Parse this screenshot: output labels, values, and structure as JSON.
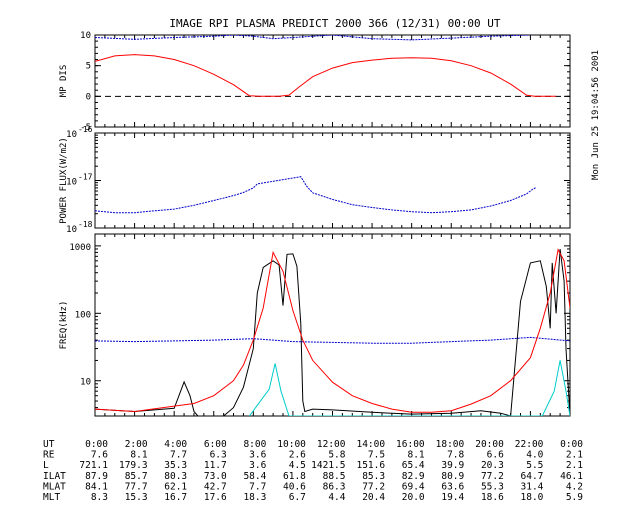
{
  "chart_data": [
    {
      "type": "line",
      "title": "IMAGE  RPI PLASMA PREDICT 2000 366 (12/31) 00:00 UT",
      "side_stamp": "Mon Jun 25 19:04:56 2001",
      "ylabel": "MP DIS",
      "ylim": [
        -5,
        10
      ],
      "yticks": [
        "-5",
        "0",
        "5",
        "10"
      ],
      "reference_line": 0,
      "series": [
        {
          "color": "#0000cc",
          "values": [
            [
              0,
              9.6
            ],
            [
              2,
              9.3
            ],
            [
              4,
              9.6
            ],
            [
              6,
              9.8
            ],
            [
              7,
              10.0
            ],
            [
              8,
              9.8
            ],
            [
              9,
              9.4
            ],
            [
              10,
              9.6
            ],
            [
              12,
              10.0
            ],
            [
              14,
              9.4
            ],
            [
              16,
              9.2
            ],
            [
              18,
              9.5
            ],
            [
              20,
              9.8
            ],
            [
              22,
              10.0
            ]
          ]
        },
        {
          "color": "#ff0000",
          "values": [
            [
              0,
              5.7
            ],
            [
              1,
              6.6
            ],
            [
              2,
              6.8
            ],
            [
              3,
              6.6
            ],
            [
              4,
              6.0
            ],
            [
              5,
              5.0
            ],
            [
              6,
              3.6
            ],
            [
              7,
              1.9
            ],
            [
              7.8,
              0.1
            ],
            [
              8.3,
              0
            ],
            [
              9.3,
              0
            ],
            [
              9.8,
              0.2
            ],
            [
              10.3,
              1.5
            ],
            [
              11,
              3.2
            ],
            [
              12,
              4.6
            ],
            [
              13,
              5.5
            ],
            [
              14,
              5.9
            ],
            [
              15,
              6.2
            ],
            [
              16,
              6.3
            ],
            [
              17,
              6.2
            ],
            [
              18,
              5.8
            ],
            [
              19,
              5.0
            ],
            [
              20,
              3.8
            ],
            [
              21,
              2.0
            ],
            [
              21.8,
              0.2
            ],
            [
              22.2,
              0
            ],
            [
              23,
              0
            ],
            [
              23.3,
              0
            ]
          ]
        }
      ]
    },
    {
      "type": "scatter",
      "ylabel": "POWER FLUX(W/m2)",
      "ylim": [
        1e-18,
        1e-16
      ],
      "log_y": true,
      "ytick_base": "10",
      "yticks": [
        {
          "value": 1e-16,
          "exp": "-16"
        },
        {
          "value": 1e-17,
          "exp": "-17"
        },
        {
          "value": 1e-18,
          "exp": "-18"
        }
      ],
      "series": [
        {
          "color": "#0000cc",
          "values": [
            [
              0,
              2.3e-18
            ],
            [
              1,
              2.1e-18
            ],
            [
              2,
              2.1e-18
            ],
            [
              3,
              2.3e-18
            ],
            [
              4,
              2.5e-18
            ],
            [
              5,
              3e-18
            ],
            [
              6,
              3.8e-18
            ],
            [
              7,
              4.8e-18
            ],
            [
              7.5,
              5.6e-18
            ],
            [
              8,
              7e-18
            ],
            [
              8.2,
              8.5e-18
            ],
            [
              10.4,
              1.2e-17
            ],
            [
              10.7,
              7.5e-18
            ],
            [
              11,
              5.5e-18
            ],
            [
              12,
              4e-18
            ],
            [
              13,
              3.1e-18
            ],
            [
              14,
              2.7e-18
            ],
            [
              15,
              2.4e-18
            ],
            [
              16,
              2.2e-18
            ],
            [
              17,
              2.1e-18
            ],
            [
              18,
              2.2e-18
            ],
            [
              19,
              2.4e-18
            ],
            [
              20,
              2.9e-18
            ],
            [
              21,
              3.8e-18
            ],
            [
              21.8,
              5.2e-18
            ],
            [
              22.1,
              6.5e-18
            ],
            [
              22.3,
              7.2e-18
            ]
          ]
        }
      ]
    },
    {
      "type": "line",
      "ylabel": "FREQ(kHz)",
      "ylim": [
        3,
        1500
      ],
      "log_y": true,
      "yticks": [
        {
          "value": 10,
          "label": "10"
        },
        {
          "value": 100,
          "label": "100"
        },
        {
          "value": 1000,
          "label": "1000"
        }
      ],
      "series": [
        {
          "color": "#000000",
          "values": [
            [
              0,
              3.8
            ],
            [
              2,
              3.5
            ],
            [
              4,
              3.9
            ],
            [
              4.5,
              9.6
            ],
            [
              4.8,
              6.0
            ],
            [
              5.0,
              3.5
            ],
            [
              5.2,
              3.0
            ],
            [
              6.5,
              3.0
            ],
            [
              7,
              4.0
            ],
            [
              7.5,
              8.0
            ],
            [
              8,
              30
            ],
            [
              8.2,
              200
            ],
            [
              8.5,
              480
            ],
            [
              9,
              600
            ],
            [
              9.3,
              520
            ],
            [
              9.5,
              130
            ],
            [
              9.7,
              750
            ],
            [
              10,
              760
            ],
            [
              10.2,
              500
            ],
            [
              10.4,
              70
            ],
            [
              10.5,
              5
            ],
            [
              10.6,
              3.5
            ],
            [
              11,
              3.8
            ],
            [
              12,
              3.7
            ],
            [
              14,
              3.4
            ],
            [
              16,
              3.2
            ],
            [
              18,
              3.3
            ],
            [
              19.5,
              3.6
            ],
            [
              20.5,
              3.3
            ],
            [
              21,
              3.0
            ],
            [
              21.5,
              150
            ],
            [
              22,
              560
            ],
            [
              22.5,
              600
            ],
            [
              22.8,
              250
            ],
            [
              23,
              60
            ],
            [
              23.1,
              560
            ],
            [
              23.3,
              100
            ],
            [
              23.5,
              900
            ],
            [
              23.7,
              300
            ],
            [
              23.8,
              30
            ],
            [
              24,
              3.0
            ]
          ]
        },
        {
          "color": "#0000cc",
          "values": [
            [
              0,
              39
            ],
            [
              2,
              38
            ],
            [
              4,
              39
            ],
            [
              6,
              40
            ],
            [
              8,
              42
            ],
            [
              9,
              40
            ],
            [
              10,
              38
            ],
            [
              12,
              37
            ],
            [
              14,
              36
            ],
            [
              16,
              36
            ],
            [
              18,
              38
            ],
            [
              20,
              40
            ],
            [
              22,
              44
            ],
            [
              24,
              39
            ]
          ]
        },
        {
          "color": "#ff0000",
          "values": [
            [
              0,
              3.8
            ],
            [
              2,
              3.5
            ],
            [
              4,
              4.2
            ],
            [
              5,
              4.6
            ],
            [
              6,
              6.0
            ],
            [
              7,
              10
            ],
            [
              7.5,
              17
            ],
            [
              8,
              40
            ],
            [
              8.5,
              120
            ],
            [
              9,
              800
            ],
            [
              9.5,
              420
            ],
            [
              10,
              110
            ],
            [
              10.5,
              40
            ],
            [
              11,
              20
            ],
            [
              12,
              9.5
            ],
            [
              13,
              6.0
            ],
            [
              14,
              4.6
            ],
            [
              15,
              3.8
            ],
            [
              16,
              3.4
            ],
            [
              17,
              3.4
            ],
            [
              18,
              3.6
            ],
            [
              19,
              4.5
            ],
            [
              20,
              6.0
            ],
            [
              21,
              10
            ],
            [
              22,
              22
            ],
            [
              22.5,
              60
            ],
            [
              23,
              200
            ],
            [
              23.4,
              880
            ],
            [
              23.7,
              600
            ],
            [
              24,
              120
            ]
          ]
        },
        {
          "color": "#00cccc",
          "values": [
            [
              7.8,
              3.0
            ],
            [
              8.8,
              7.5
            ],
            [
              9.1,
              18
            ],
            [
              9.4,
              7.0
            ],
            [
              9.8,
              3.0
            ],
            [
              22.6,
              3.0
            ],
            [
              23.2,
              7.0
            ],
            [
              23.5,
              20
            ],
            [
              23.8,
              7.0
            ],
            [
              24,
              3.0
            ]
          ]
        }
      ]
    }
  ],
  "table": {
    "rows": [
      {
        "label": "UT",
        "values": [
          "0:00",
          "2:00",
          "4:00",
          "6:00",
          "8:00",
          "10:00",
          "12:00",
          "14:00",
          "16:00",
          "18:00",
          "20:00",
          "22:00",
          "0:00"
        ]
      },
      {
        "label": "RE",
        "values": [
          "7.6",
          "8.1",
          "7.7",
          "6.3",
          "3.6",
          "2.6",
          "5.8",
          "7.5",
          "8.1",
          "7.8",
          "6.6",
          "4.0",
          "2.1"
        ]
      },
      {
        "label": "L",
        "values": [
          "721.1",
          "179.3",
          "35.3",
          "11.7",
          "3.6",
          "4.5",
          "1421.5",
          "151.6",
          "65.4",
          "39.9",
          "20.3",
          "5.5",
          "2.1"
        ]
      },
      {
        "label": "ILAT",
        "values": [
          "87.9",
          "85.7",
          "80.3",
          "73.0",
          "58.4",
          "61.8",
          "88.5",
          "85.3",
          "82.9",
          "80.9",
          "77.2",
          "64.7",
          "46.1"
        ]
      },
      {
        "label": "MLAT",
        "values": [
          "84.1",
          "77.7",
          "62.1",
          "42.7",
          "7.7",
          "40.6",
          "86.3",
          "77.2",
          "69.4",
          "63.6",
          "55.3",
          "31.4",
          "4.2"
        ]
      },
      {
        "label": "MLT",
        "values": [
          "8.3",
          "15.3",
          "16.7",
          "17.6",
          "18.3",
          "6.7",
          "4.4",
          "20.4",
          "20.0",
          "19.4",
          "18.6",
          "18.0",
          "5.9"
        ]
      }
    ]
  }
}
